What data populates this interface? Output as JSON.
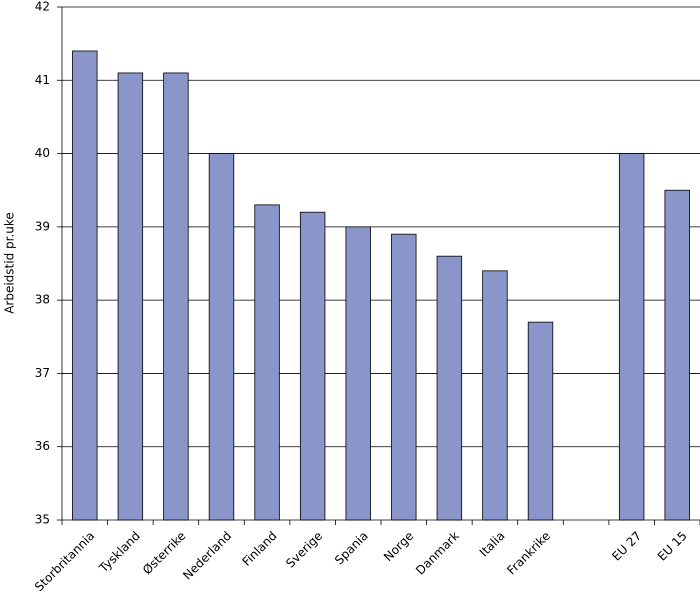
{
  "chart_data": {
    "type": "bar",
    "y_label": "Arbeidstid pr.uke",
    "categories": [
      "Storbritannia",
      "Tyskland",
      "Østerrike",
      "Nederland",
      "Finland",
      "Sverige",
      "Spania",
      "Norge",
      "Danmark",
      "Italia",
      "Frankrike",
      null,
      "EU 27",
      "EU 15"
    ],
    "values": [
      41.4,
      41.1,
      41.1,
      40,
      39.3,
      39.2,
      39,
      38.9,
      38.6,
      38.4,
      37.7,
      null,
      40,
      39.5
    ],
    "color": "#8a95c9",
    "ylim": [
      35,
      42
    ],
    "yticks": [
      35,
      36,
      37,
      38,
      39,
      40,
      41,
      42
    ],
    "grid": true
  }
}
